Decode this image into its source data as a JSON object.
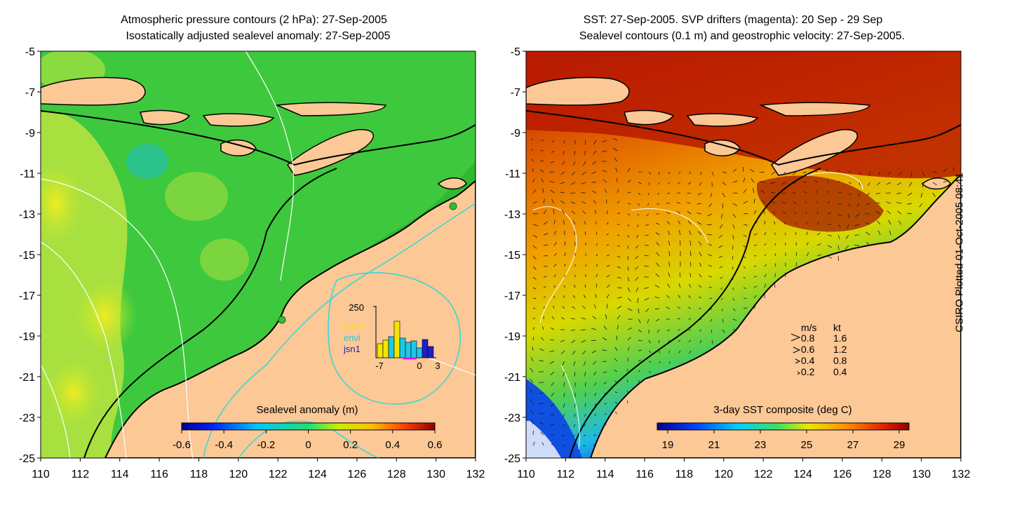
{
  "left_panel": {
    "title_line1": "Atmospheric pressure contours (2 hPa): 27-Sep-2005",
    "title_line2": "Isostatically adjusted sealevel anomaly: 27-Sep-2005",
    "colorbar_label": "Sealevel anomaly (m)",
    "colorbar_ticks": [
      "-0.6",
      "-0.4",
      "-0.2",
      "0",
      "0.2",
      "0.4",
      "0.6"
    ],
    "inset": {
      "ytick": "250",
      "xticks": [
        "-7",
        "0",
        "3"
      ],
      "legend": [
        {
          "label": "GFO",
          "color": "#f2e600"
        },
        {
          "label": "envi",
          "color": "#1ec8e6"
        },
        {
          "label": "jsn1",
          "color": "#2020c8"
        }
      ]
    }
  },
  "right_panel": {
    "title_line1": "SST: 27-Sep-2005. SVP drifters (magenta): 20 Sep - 29 Sep",
    "title_line2": "Sealevel contours (0.1 m) and geostrophic velocity: 27-Sep-2005.",
    "colorbar_label": "3-day SST composite (deg C)",
    "colorbar_ticks": [
      "19",
      "21",
      "23",
      "25",
      "27",
      "29"
    ],
    "velocity_legend": {
      "header_ms": "m/s",
      "header_kt": "kt",
      "rows": [
        {
          "ms": "0.8",
          "kt": "1.6"
        },
        {
          "ms": "0.6",
          "kt": "1.2"
        },
        {
          "ms": "0.4",
          "kt": "0.8"
        },
        {
          "ms": "0.2",
          "kt": "0.4"
        }
      ]
    }
  },
  "axes": {
    "lat_ticks": [
      "-5",
      "-7",
      "-9",
      "-11",
      "-13",
      "-15",
      "-17",
      "-19",
      "-21",
      "-23",
      "-25"
    ],
    "lon_ticks": [
      "110",
      "112",
      "114",
      "116",
      "118",
      "120",
      "122",
      "124",
      "126",
      "128",
      "130",
      "132"
    ]
  },
  "side_note": "CSIRO Plotted 01-Oct-2005 08:41",
  "colors": {
    "land": "#fbc896",
    "coast": "#000000",
    "contour": "#ffffff",
    "drifter": "#ff00ff",
    "depth_contour": "#30d8d8"
  }
}
